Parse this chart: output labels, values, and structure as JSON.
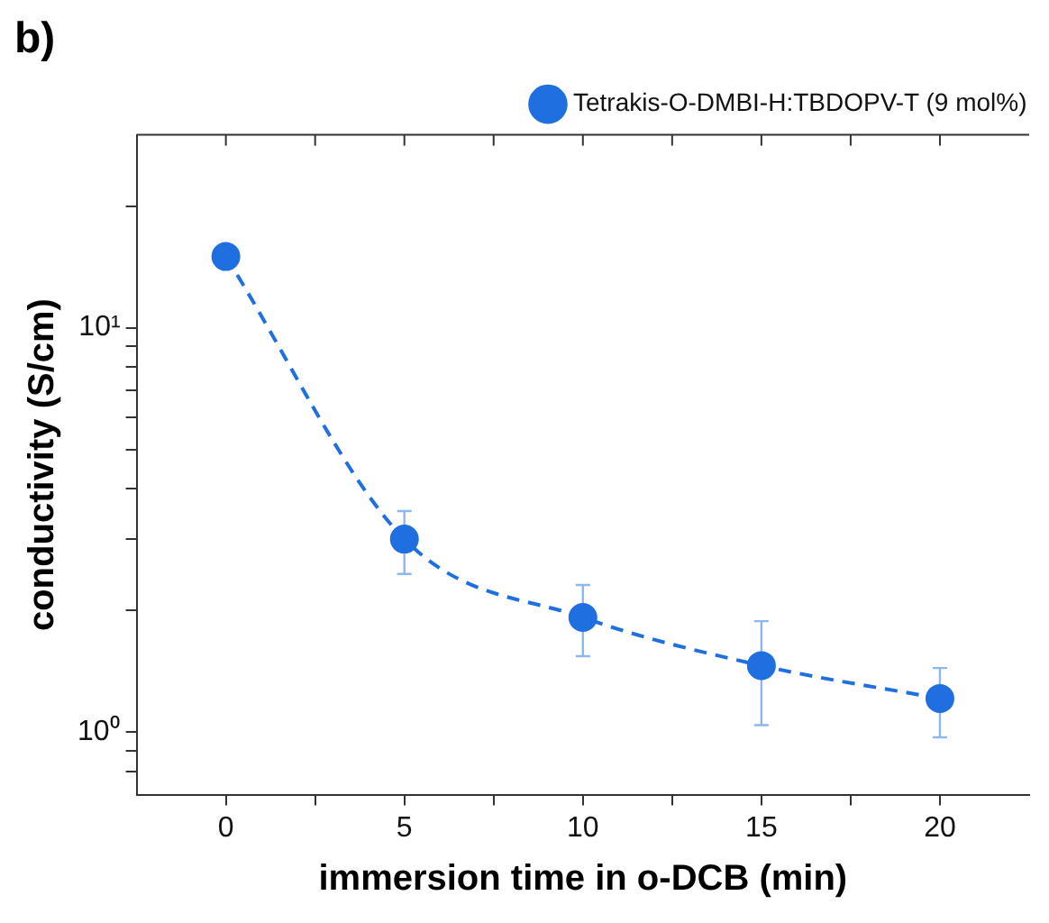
{
  "chart_data": {
    "type": "line",
    "title": "b)",
    "xlabel": "immersion time in o-DCB (min)",
    "ylabel": "conductivity (S/cm)",
    "x": [
      0,
      5,
      10,
      15,
      20
    ],
    "series": [
      {
        "name": "Tetrakis-O-DMBI-H:TBDOPV-T (9 mol%)",
        "color": "#1f6fe0",
        "values": [
          15,
          3.0,
          1.92,
          1.46,
          1.21
        ],
        "errors": [
          null,
          [
            2.46,
            3.52
          ],
          [
            1.54,
            2.31
          ],
          [
            1.04,
            1.88
          ],
          [
            0.97,
            1.44
          ]
        ]
      }
    ],
    "xlim": [
      -2.5,
      22.5
    ],
    "xticks": [
      0,
      {
        "value": 2.5,
        "label": null
      },
      5,
      {
        "value": 7.5,
        "label": null
      },
      10,
      {
        "value": 12.5,
        "label": null
      },
      15,
      {
        "value": 17.5,
        "label": null
      },
      20
    ],
    "ylim": [
      0.7,
      30
    ],
    "yticks": [
      {
        "value": 0.8,
        "label": null
      },
      {
        "value": 0.9,
        "label": null
      },
      {
        "value": 1,
        "label": "10⁰"
      },
      {
        "value": 2,
        "label": null
      },
      {
        "value": 3,
        "label": null
      },
      {
        "value": 4,
        "label": null
      },
      {
        "value": 5,
        "label": null
      },
      {
        "value": 6,
        "label": null
      },
      {
        "value": 7,
        "label": null
      },
      {
        "value": 8,
        "label": null
      },
      {
        "value": 9,
        "label": null
      },
      {
        "value": 10,
        "label": "10¹"
      },
      {
        "value": 20,
        "label": null
      }
    ],
    "log": "y",
    "grid": false,
    "legend": "top right",
    "marker": "circle",
    "line_style": "dashed"
  }
}
